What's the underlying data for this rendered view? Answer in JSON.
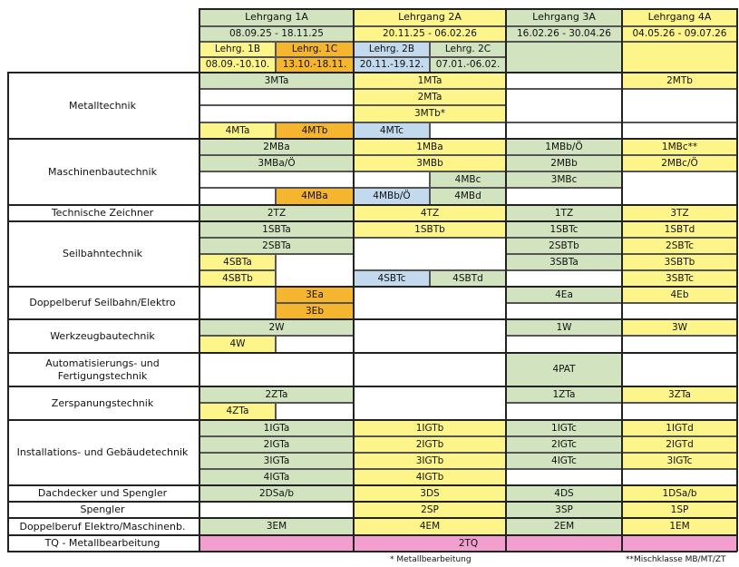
{
  "palette": {
    "green": "#d2e3c0",
    "yellow": "#fdf58a",
    "orange": "#f6b52e",
    "blue": "#c3d9ee",
    "pink": "#f29fcf",
    "white": "#ffffff"
  },
  "header": {
    "courses": [
      {
        "title": "Lehrgang 1A",
        "dates": "08.09.25 - 18.11.25"
      },
      {
        "title": "Lehrgang 2A",
        "dates": "20.11.25 - 06.02.26"
      },
      {
        "title": "Lehrgang 3A",
        "dates": "16.02.26 - 30.04.26"
      },
      {
        "title": "Lehrgang 4A",
        "dates": "04.05.26 - 09.07.26"
      }
    ],
    "subcourses": [
      {
        "title": "Lehrg. 1B",
        "dates": "08.09.-10.10."
      },
      {
        "title": "Lehrg. 1C",
        "dates": "13.10.-18.11."
      },
      {
        "title": "Lehrg. 2B",
        "dates": "20.11.-19.12."
      },
      {
        "title": "Lehrg. 2C",
        "dates": "07.01.-06.02."
      }
    ]
  },
  "sections": [
    "Metalltechnik",
    "Maschinenbautechnik",
    "Technische Zeichner",
    "Seilbahntechnik",
    "Doppelberuf Seilbahn/Elektro",
    "Werkzeugbautechnik",
    "Automatisierungs- und Fertigungstechnik",
    "Zerspanungstechnik",
    "Installations- und Gebäudetechnik",
    "Dachdecker und Spengler",
    "Spengler",
    "Doppelberuf Elektro/Maschinenb.",
    "TQ - Metallbearbeitung"
  ],
  "cells": {
    "mt_1a_1": "3MTa",
    "mt_2a_1": "1MTa",
    "mt_4a_1": "2MTb",
    "mt_2a_2": "2MTa",
    "mt_2a_3": "3MTb*",
    "mt_1b_4": "4MTa",
    "mt_1c_4": "4MTb",
    "mt_2b_4": "4MTc",
    "mb_1a_1": "2MBa",
    "mb_2a_1": "1MBa",
    "mb_3a_1": "1MBb/Ö",
    "mb_4a_1": "1MBc**",
    "mb_1a_2": "3MBa/Ö",
    "mb_2a_2": "3MBb",
    "mb_3a_2": "2MBb",
    "mb_4a_2": "2MBc/Ö",
    "mb_2c_3": "4MBc",
    "mb_3a_3": "3MBc",
    "mb_1c_4": "4MBa",
    "mb_2b_4": "4MBb/Ö",
    "mb_2c_4": "4MBd",
    "tz_1a": "2TZ",
    "tz_2a": "4TZ",
    "tz_3a": "1TZ",
    "tz_4a": "3TZ",
    "sb_1a_1": "1SBTa",
    "sb_2a_1": "1SBTb",
    "sb_3a_1": "1SBTc",
    "sb_4a_1": "1SBTd",
    "sb_1a_2": "2SBTa",
    "sb_3a_2": "2SBTb",
    "sb_4a_2": "2SBTc",
    "sb_1b_3": "4SBTa",
    "sb_3a_3": "3SBTa",
    "sb_4a_3": "3SBTb",
    "sb_1b_4": "4SBTb",
    "sb_2b_4": "4SBTc",
    "sb_2c_4": "4SBTd",
    "sb_4a_4": "3SBTc",
    "de_1c_1": "3Ea",
    "de_3a_1": "4Ea",
    "de_4a_1": "4Eb",
    "de_1c_2": "3Eb",
    "wb_1a_1": "2W",
    "wb_3a_1": "1W",
    "wb_4a_1": "3W",
    "wb_1b_2": "4W",
    "af_3a": "4PAT",
    "zs_1a_1": "2ZTa",
    "zs_3a_1": "1ZTa",
    "zs_4a_1": "3ZTa",
    "zs_1b_2": "4ZTa",
    "ig_1a_1": "1IGTa",
    "ig_2a_1": "1IGTb",
    "ig_3a_1": "1IGTc",
    "ig_4a_1": "1IGTd",
    "ig_1a_2": "2IGTa",
    "ig_2a_2": "2IGTb",
    "ig_3a_2": "2IGTc",
    "ig_4a_2": "2IGTd",
    "ig_1a_3": "3IGTa",
    "ig_2a_3": "3IGTb",
    "ig_3a_3": "4IGTc",
    "ig_4a_3": "3IGTc",
    "ig_1a_4": "4IGTa",
    "ig_2a_4": "4IGTb",
    "ds_1a": "2DSa/b",
    "ds_2a": "3DS",
    "ds_3a": "4DS",
    "ds_4a": "1DSa/b",
    "sp_2a": "2SP",
    "sp_3a": "3SP",
    "sp_4a": "1SP",
    "em_1a": "3EM",
    "em_2a": "4EM",
    "em_3a": "2EM",
    "em_4a": "1EM",
    "tq": "2TQ"
  },
  "footnotes": {
    "star": "* Metallbearbeitung",
    "double_star": "**Mischklasse MB/MT/ZT"
  }
}
